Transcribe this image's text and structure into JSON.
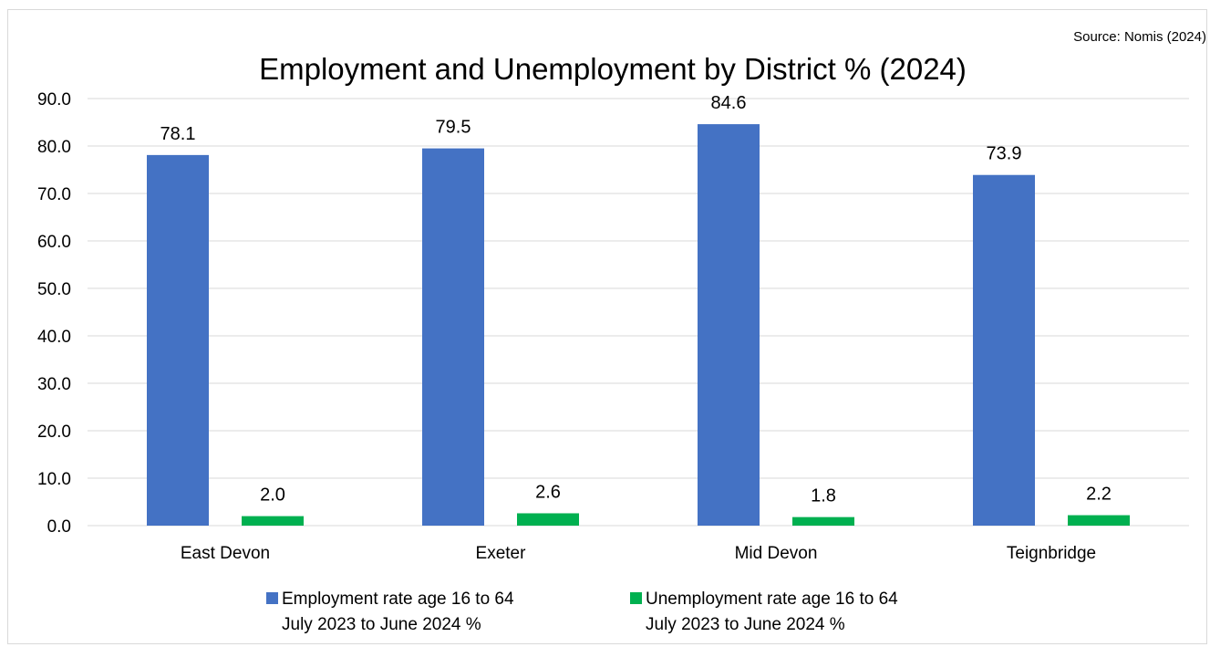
{
  "chart_data": {
    "type": "bar",
    "title": "Employment and Unemployment by District % (2024)",
    "source_note": "Source: Nomis (2024)",
    "categories": [
      "East Devon",
      "Exeter",
      "Mid Devon",
      "Teignbridge"
    ],
    "series": [
      {
        "name_line1": "Employment rate age 16 to 64",
        "name_line2": "July 2023 to June 2024 %",
        "color": "#4472C4",
        "values": [
          78.1,
          79.5,
          84.6,
          73.9
        ],
        "labels": [
          "78.1",
          "79.5",
          "84.6",
          "73.9"
        ]
      },
      {
        "name_line1": "Unemployment rate age 16 to 64",
        "name_line2": "July 2023 to June 2024 %",
        "color": "#00B050",
        "values": [
          2.0,
          2.6,
          1.8,
          2.2
        ],
        "labels": [
          "2.0",
          "2.6",
          "1.8",
          "2.2"
        ]
      }
    ],
    "ylim": [
      0,
      90
    ],
    "yticks": [
      "0.0",
      "10.0",
      "20.0",
      "30.0",
      "40.0",
      "50.0",
      "60.0",
      "70.0",
      "80.0",
      "90.0"
    ],
    "grid": true,
    "legend_position": "bottom",
    "gridline_color": "#d9d9d9"
  }
}
